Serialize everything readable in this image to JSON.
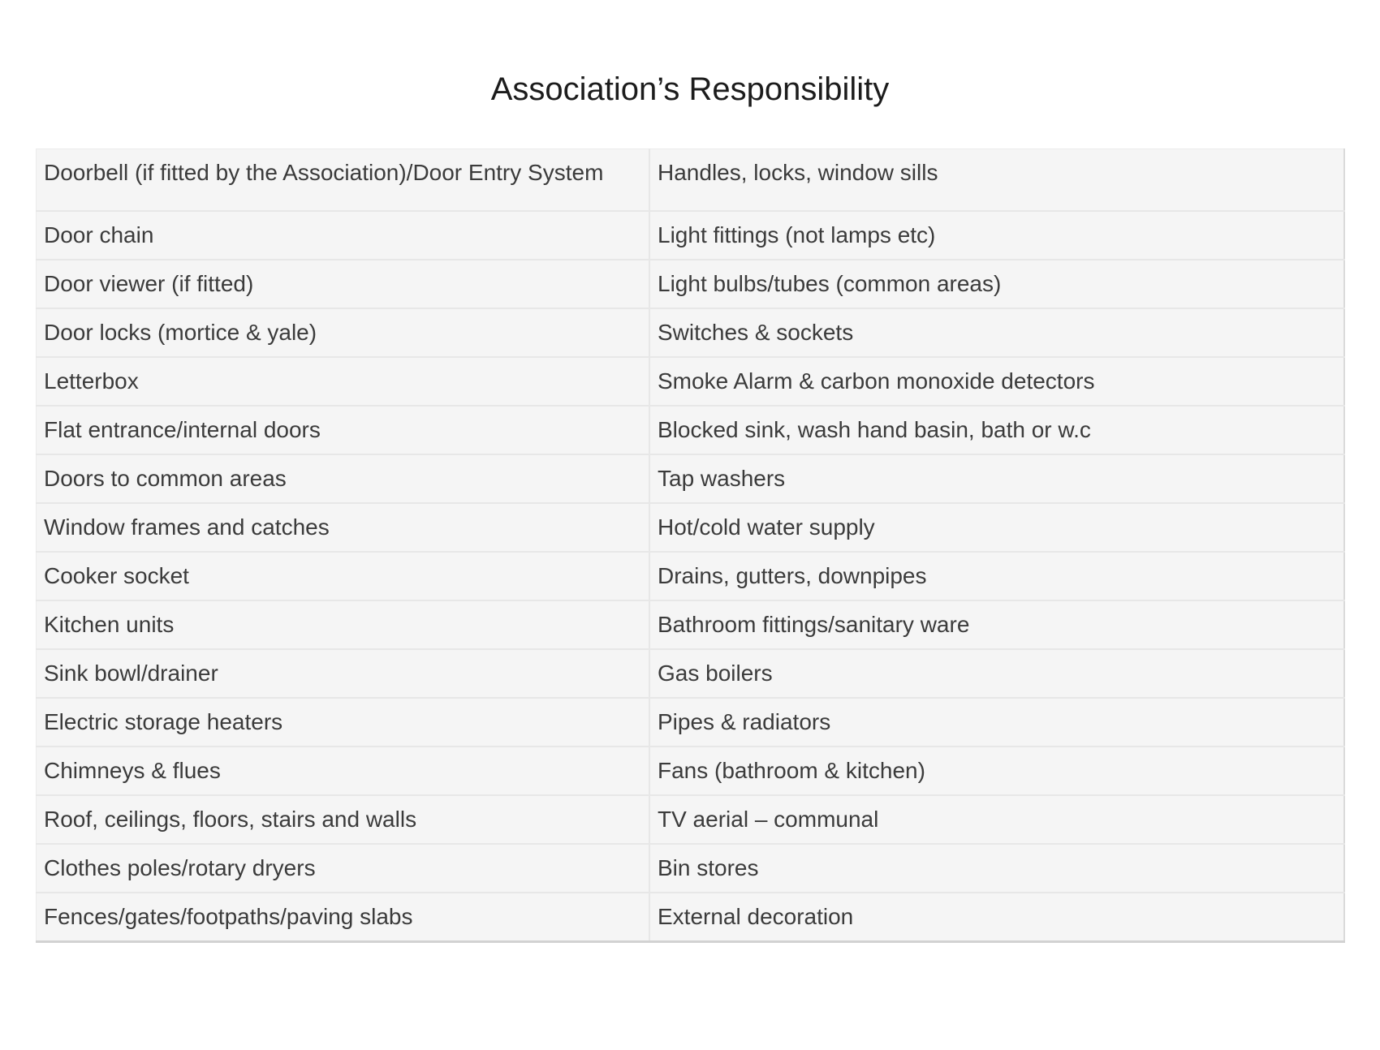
{
  "page": {
    "title": "Association’s Responsibility"
  },
  "table": {
    "rows": [
      {
        "left": "Doorbell (if fitted by the Association)/Door Entry System",
        "right": "Handles, locks, window sills"
      },
      {
        "left": "Door chain",
        "right": "Light fittings (not lamps etc)"
      },
      {
        "left": "Door viewer (if fitted)",
        "right": "Light bulbs/tubes (common areas)"
      },
      {
        "left": "Door locks (mortice & yale)",
        "right": "Switches & sockets"
      },
      {
        "left": "Letterbox",
        "right": "Smoke Alarm & carbon monoxide detectors"
      },
      {
        "left": "Flat entrance/internal doors",
        "right": "Blocked sink, wash hand basin, bath or w.c"
      },
      {
        "left": "Doors to common areas",
        "right": "Tap washers"
      },
      {
        "left": "Window frames and catches",
        "right": "Hot/cold water supply"
      },
      {
        "left": "Cooker socket",
        "right": "Drains, gutters, downpipes"
      },
      {
        "left": "Kitchen units",
        "right": "Bathroom fittings/sanitary ware"
      },
      {
        "left": "Sink bowl/drainer",
        "right": "Gas boilers"
      },
      {
        "left": "Electric storage heaters",
        "right": "Pipes & radiators"
      },
      {
        "left": "Chimneys & flues",
        "right": "Fans (bathroom & kitchen)"
      },
      {
        "left": "Roof, ceilings, floors, stairs and walls",
        "right": "TV aerial – communal"
      },
      {
        "left": "Clothes poles/rotary dryers",
        "right": "Bin stores"
      },
      {
        "left": "Fences/gates/footpaths/paving slabs",
        "right": "External decoration"
      }
    ]
  }
}
